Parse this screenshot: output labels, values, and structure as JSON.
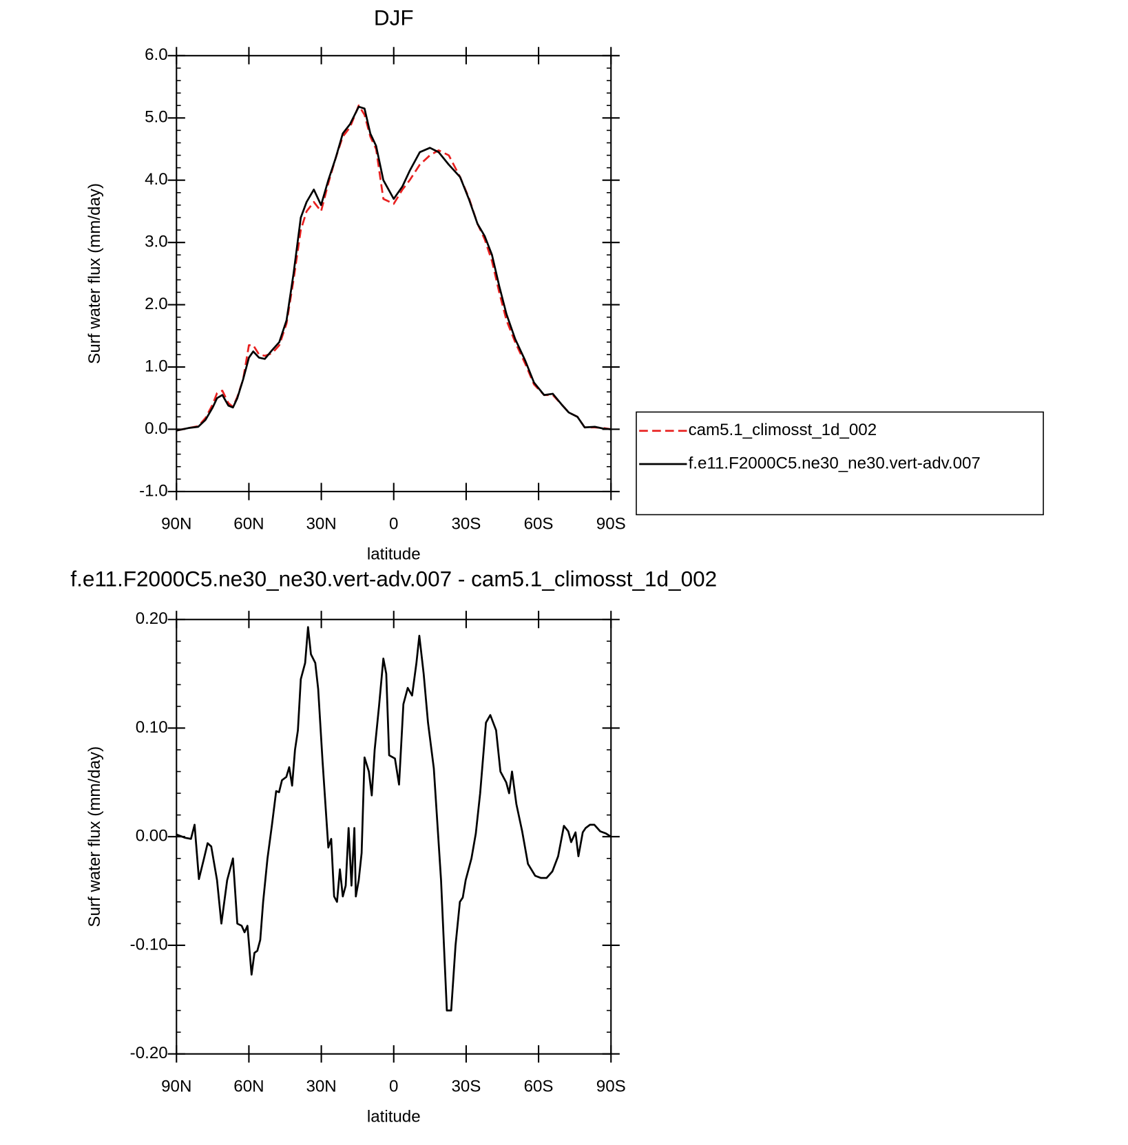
{
  "chart_data": [
    {
      "type": "line",
      "title": "DJF",
      "xlabel": "latitude",
      "ylabel": "Surf water flux (mm/day)",
      "xlim": [
        90,
        -90
      ],
      "ylim": [
        -1,
        6
      ],
      "xticks": [
        {
          "value": 90,
          "label": "90N"
        },
        {
          "value": 60,
          "label": "60N"
        },
        {
          "value": 30,
          "label": "30N"
        },
        0,
        {
          "value": -30,
          "label": "30S"
        },
        {
          "value": -60,
          "label": "60S"
        },
        {
          "value": -90,
          "label": "90S"
        }
      ],
      "yticks": [
        {
          "value": 6,
          "label": "6.0"
        },
        {
          "value": 5,
          "label": "5.0"
        },
        {
          "value": 4,
          "label": "4.0"
        },
        {
          "value": 3,
          "label": "3.0"
        },
        {
          "value": 2,
          "label": "2.0"
        },
        {
          "value": 1,
          "label": "1.0"
        },
        {
          "value": 0,
          "label": "0.0"
        },
        {
          "value": -1,
          "label": "-1.0"
        }
      ],
      "legend": "right",
      "x": [
        90,
        85,
        81,
        78,
        75,
        73.2,
        71,
        68.5,
        66.6,
        64.8,
        62.4,
        60,
        58.2,
        55.8,
        53.4,
        50.4,
        47.4,
        44.4,
        41.5,
        38.5,
        36.1,
        33.1,
        30.1,
        27.1,
        24.1,
        21.1,
        18.1,
        14.5,
        12.1,
        9.7,
        7.3,
        4.3,
        0,
        -3.6,
        -6.6,
        -10.8,
        -15,
        -18.6,
        -22.8,
        -27.5,
        -31.1,
        -34.7,
        -37.7,
        -40.7,
        -43.7,
        -46.7,
        -50.3,
        -54.5,
        -58.1,
        -62.3,
        -65.9,
        -69.5,
        -72.5,
        -76.1,
        -79.1,
        -83.3,
        -86.9,
        -90
      ],
      "series": [
        {
          "name": "cam5.1_climosst_1d_002",
          "color": "#e8201f",
          "linestyle": "dashed",
          "values": [
            -0.02,
            0.02,
            0.05,
            0.18,
            0.4,
            0.58,
            0.62,
            0.42,
            0.36,
            0.52,
            0.8,
            1.35,
            1.35,
            1.2,
            1.18,
            1.22,
            1.35,
            1.7,
            2.4,
            3.2,
            3.5,
            3.65,
            3.5,
            3.95,
            4.35,
            4.7,
            4.85,
            5.2,
            5.05,
            4.7,
            4.5,
            3.7,
            3.62,
            3.85,
            4.0,
            4.25,
            4.4,
            4.48,
            4.4,
            4.05,
            3.72,
            3.3,
            3.05,
            2.7,
            2.2,
            1.75,
            1.4,
            1.05,
            0.72,
            0.55,
            0.55,
            0.4,
            0.27,
            0.2,
            0.03,
            0.03,
            0.02,
            0
          ]
        },
        {
          "name": "f.e11.F2000C5.ne30_ne30.vert-adv.007",
          "color": "#000000",
          "linestyle": "solid",
          "values": [
            -0.02,
            0.02,
            0.04,
            0.15,
            0.35,
            0.5,
            0.55,
            0.38,
            0.35,
            0.5,
            0.8,
            1.15,
            1.25,
            1.15,
            1.13,
            1.27,
            1.4,
            1.75,
            2.5,
            3.4,
            3.65,
            3.85,
            3.6,
            4.0,
            4.35,
            4.75,
            4.9,
            5.18,
            5.15,
            4.75,
            4.55,
            4.0,
            3.7,
            3.9,
            4.15,
            4.45,
            4.52,
            4.45,
            4.25,
            4.05,
            3.7,
            3.3,
            3.1,
            2.8,
            2.3,
            1.85,
            1.45,
            1.1,
            0.75,
            0.55,
            0.57,
            0.4,
            0.27,
            0.2,
            0.03,
            0.04,
            0.01,
            0
          ]
        }
      ]
    },
    {
      "type": "line",
      "title": "f.e11.F2000C5.ne30_ne30.vert-adv.007 - cam5.1_climosst_1d_002",
      "xlabel": "latitude",
      "ylabel": "Surf water flux (mm/day)",
      "xlim": [
        90,
        -90
      ],
      "ylim": [
        -0.2,
        0.2
      ],
      "xticks": [
        {
          "value": 90,
          "label": "90N"
        },
        {
          "value": 60,
          "label": "60N"
        },
        {
          "value": 30,
          "label": "30N"
        },
        0,
        {
          "value": -30,
          "label": "30S"
        },
        {
          "value": -60,
          "label": "60S"
        },
        {
          "value": -90,
          "label": "90S"
        }
      ],
      "yticks": [
        {
          "value": 0.2,
          "label": "0.20"
        },
        {
          "value": 0.1,
          "label": "0.10"
        },
        {
          "value": 0,
          "label": "0.00"
        },
        {
          "value": -0.1,
          "label": "-0.10"
        },
        {
          "value": -0.2,
          "label": "-0.20"
        }
      ],
      "x": [
        90,
        86.4,
        84.0,
        82.5,
        80.7,
        78.6,
        77.1,
        75.6,
        73.2,
        71.4,
        69.0,
        67.8,
        66.6,
        64.8,
        63.0,
        61.8,
        60.6,
        58.9,
        57.7,
        56.5,
        55.3,
        54.1,
        52.3,
        50.5,
        48.7,
        47.5,
        46.3,
        44.5,
        43.3,
        42.1,
        40.9,
        39.7,
        38.5,
        36.7,
        35.5,
        34.3,
        32.5,
        31.3,
        29.5,
        28.3,
        27.1,
        25.9,
        24.7,
        23.5,
        22.3,
        21.1,
        19.9,
        18.7,
        17.5,
        16.3,
        15.7,
        14.5,
        13.3,
        12.1,
        10.3,
        9.1,
        7.9,
        6.1,
        4.3,
        3.1,
        1.9,
        -0.5,
        -2.2,
        -4.0,
        -5.8,
        -7.6,
        -9.4,
        -10.6,
        -12.4,
        -14.2,
        -16.6,
        -19.6,
        -22.0,
        -23.8,
        -25.6,
        -27.4,
        -28.6,
        -29.8,
        -32.2,
        -34.0,
        -35.8,
        -38.2,
        -40.0,
        -42.4,
        -44.2,
        -46.6,
        -47.8,
        -49.0,
        -50.8,
        -53.2,
        -55.6,
        -58.6,
        -61.0,
        -63.3,
        -65.7,
        -68.1,
        -70.5,
        -72.3,
        -73.5,
        -75.3,
        -76.5,
        -78.3,
        -79.5,
        -81.3,
        -83.1,
        -85.5,
        -87.9,
        -90
      ],
      "series": [
        {
          "name": "f.e11.F2000C5.ne30_ne30.vert-adv.007 - cam5.1_climosst_1d_002",
          "color": "#000000",
          "linestyle": "solid",
          "values": [
            0.002,
            -0.001,
            -0.002,
            0.011,
            -0.039,
            -0.02,
            -0.006,
            -0.009,
            -0.04,
            -0.08,
            -0.04,
            -0.03,
            -0.02,
            -0.08,
            -0.082,
            -0.088,
            -0.082,
            -0.127,
            -0.107,
            -0.105,
            -0.095,
            -0.06,
            -0.02,
            0.01,
            0.042,
            0.041,
            0.052,
            0.055,
            0.064,
            0.047,
            0.08,
            0.098,
            0.145,
            0.16,
            0.193,
            0.168,
            0.16,
            0.136,
            0.07,
            0.03,
            -0.01,
            -0.002,
            -0.055,
            -0.06,
            -0.03,
            -0.055,
            -0.045,
            0.008,
            -0.045,
            0.008,
            -0.055,
            -0.04,
            -0.015,
            0.073,
            0.06,
            0.038,
            0.08,
            0.12,
            0.164,
            0.15,
            0.075,
            0.072,
            0.048,
            0.122,
            0.137,
            0.13,
            0.16,
            0.185,
            0.15,
            0.105,
            0.063,
            -0.04,
            -0.16,
            -0.16,
            -0.1,
            -0.06,
            -0.056,
            -0.04,
            -0.02,
            0.003,
            0.04,
            0.105,
            0.112,
            0.098,
            0.06,
            0.05,
            0.04,
            0.06,
            0.03,
            0.005,
            -0.025,
            -0.036,
            -0.038,
            -0.038,
            -0.032,
            -0.018,
            0.01,
            0.005,
            -0.005,
            0.004,
            -0.018,
            0.004,
            0.008,
            0.011,
            0.011,
            0.005,
            0.003,
            0
          ]
        }
      ]
    }
  ]
}
